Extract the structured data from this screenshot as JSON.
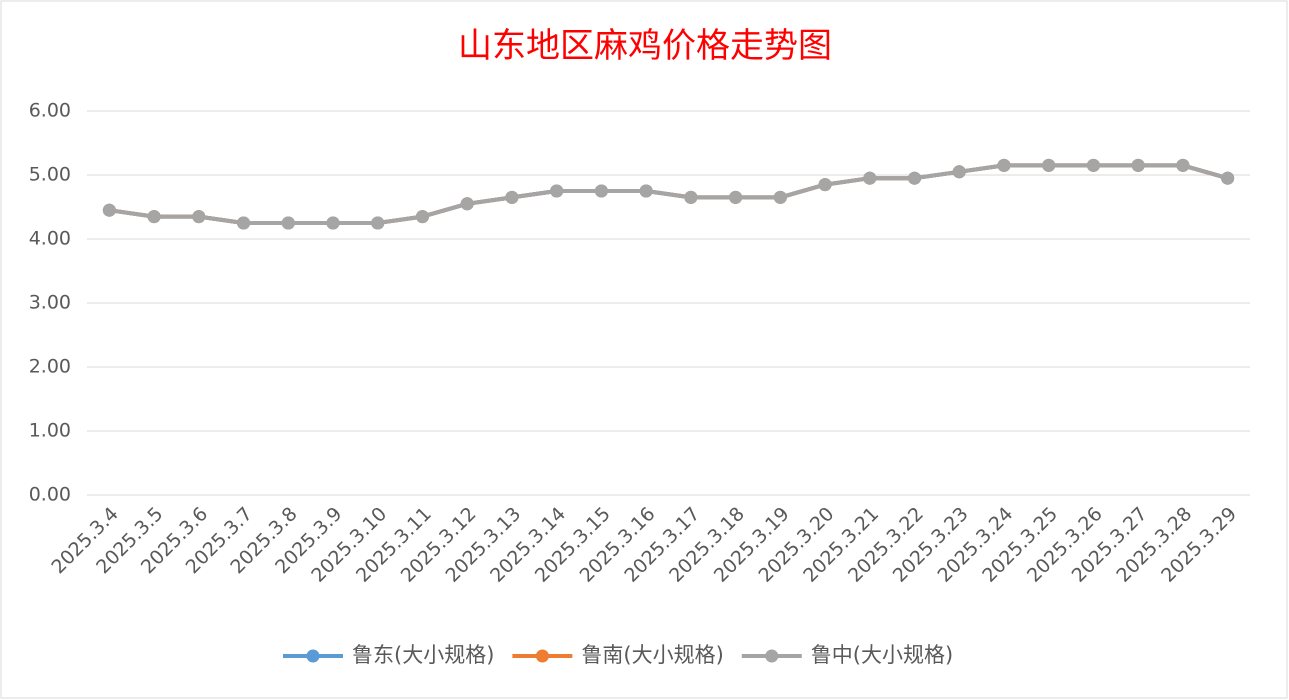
{
  "chart_data": {
    "type": "line",
    "title": "山东地区麻鸡价格走势图",
    "categories": [
      "2025.3.4",
      "2025.3.5",
      "2025.3.6",
      "2025.3.7",
      "2025.3.8",
      "2025.3.9",
      "2025.3.10",
      "2025.3.11",
      "2025.3.12",
      "2025.3.13",
      "2025.3.14",
      "2025.3.15",
      "2025.3.16",
      "2025.3.17",
      "2025.3.18",
      "2025.3.19",
      "2025.3.20",
      "2025.3.21",
      "2025.3.22",
      "2025.3.23",
      "2025.3.24",
      "2025.3.25",
      "2025.3.26",
      "2025.3.27",
      "2025.3.28",
      "2025.3.29"
    ],
    "series": [
      {
        "name": "鲁东(大小规格)",
        "color": "#5b9bd5",
        "values": [
          4.45,
          4.35,
          4.35,
          4.25,
          4.25,
          4.25,
          4.25,
          4.35,
          4.55,
          4.65,
          4.75,
          4.75,
          4.75,
          4.65,
          4.65,
          4.65,
          4.85,
          4.95,
          4.95,
          5.05,
          5.15,
          5.15,
          5.15,
          5.15,
          5.15,
          4.95
        ]
      },
      {
        "name": "鲁南(大小规格)",
        "color": "#ed7d31",
        "values": [
          4.45,
          4.35,
          4.35,
          4.25,
          4.25,
          4.25,
          4.25,
          4.35,
          4.55,
          4.65,
          4.75,
          4.75,
          4.75,
          4.65,
          4.65,
          4.65,
          4.85,
          4.95,
          4.95,
          5.05,
          5.15,
          5.15,
          5.15,
          5.15,
          5.15,
          4.95
        ]
      },
      {
        "name": "鲁中(大小规格)",
        "color": "#a5a5a5",
        "values": [
          4.45,
          4.35,
          4.35,
          4.25,
          4.25,
          4.25,
          4.25,
          4.35,
          4.55,
          4.65,
          4.75,
          4.75,
          4.75,
          4.65,
          4.65,
          4.65,
          4.85,
          4.95,
          4.95,
          5.05,
          5.15,
          5.15,
          5.15,
          5.15,
          5.15,
          4.95
        ]
      }
    ],
    "ylim": [
      0,
      6
    ],
    "yticks": [
      {
        "value": 0,
        "label": "0.00"
      },
      {
        "value": 1,
        "label": "1.00"
      },
      {
        "value": 2,
        "label": "2.00"
      },
      {
        "value": 3,
        "label": "3.00"
      },
      {
        "value": 4,
        "label": "4.00"
      },
      {
        "value": 5,
        "label": "5.00"
      },
      {
        "value": 6,
        "label": "6.00"
      }
    ],
    "grid": true,
    "legend": "bottom"
  }
}
